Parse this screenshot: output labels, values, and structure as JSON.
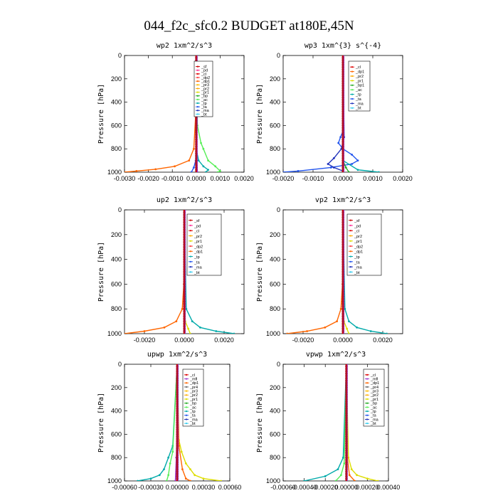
{
  "title": "044_f2c_sfc0.2  BUDGET at180E,45N",
  "colors": {
    "sf": "#cc0000",
    "pd": "#ff3399",
    "cl": "#dd0000",
    "dp2": "#ff4040",
    "dp1": "#ff6600",
    "pr3": "#ffbb00",
    "pr2": "#ffaa00",
    "pr1": "#dddd00",
    "bp": "#22aa22",
    "ac": "#55ee55",
    "tp": "#00aaaa",
    "ta": "#2255ee",
    "ma": "#2233bb",
    "bt": "#33ccee",
    "mfl": "#9933cc",
    "dp4": "#cc2255",
    "axis": "#000000",
    "legend_border": "#000000"
  },
  "chart_data": [
    {
      "type": "line",
      "title": "wp2  1xm^2/s^3",
      "xlabel": "",
      "ylabel": "Pressure [hPa]",
      "xlim": [
        -0.003,
        0.002
      ],
      "ylim": [
        1000,
        0
      ],
      "xticks": [
        -0.003,
        -0.002,
        -0.001,
        0.0,
        0.001,
        0.002
      ],
      "xtick_labels": [
        "-0.0030",
        "-0.0020",
        "-0.0010",
        "0.0000",
        "0.0010",
        "0.0020"
      ],
      "yticks": [
        0,
        200,
        400,
        600,
        800,
        1000
      ],
      "ytick_labels": [
        "0",
        "200",
        "400",
        "600",
        "800",
        "1000"
      ],
      "legend": [
        "_sf",
        "_pd",
        "_cl",
        "_dp2",
        "_dp1",
        "_pr3",
        "_pr2",
        "_pr1",
        "_bp",
        "_ac",
        "_tp",
        "_ta",
        "_ma",
        "_bt"
      ],
      "series": [
        {
          "key": "dp1",
          "pressure": [
            0,
            500,
            800,
            900,
            950,
            975,
            990,
            1000
          ],
          "values": [
            0,
            -2e-05,
            -0.0001,
            -0.0003,
            -0.0009,
            -0.0017,
            -0.0025,
            -0.003
          ]
        },
        {
          "key": "ac",
          "pressure": [
            0,
            600,
            750,
            800,
            900,
            950,
            990,
            1000
          ],
          "values": [
            0,
            5e-05,
            0.0002,
            0.0003,
            0.0005,
            0.0008,
            0.001,
            0.0009
          ]
        },
        {
          "key": "tp",
          "pressure": [
            0,
            800,
            900,
            950,
            980,
            1000
          ],
          "values": [
            0,
            0.0,
            0.0001,
            0.0003,
            0.0005,
            0.0004
          ]
        },
        {
          "key": "ta",
          "pressure": [
            0,
            900,
            960,
            1000
          ],
          "values": [
            0,
            -2e-05,
            -0.0001,
            -0.0002
          ]
        },
        {
          "key": "mfl",
          "pressure": [
            0,
            500,
            900,
            1000
          ],
          "values": [
            0,
            0.0,
            3e-05,
            5e-05
          ]
        }
      ]
    },
    {
      "type": "line",
      "title": "wp3  1xm^{3} s^{-4}",
      "xlabel": "",
      "ylabel": "Pressure [hPa]",
      "xlim": [
        -0.002,
        0.002
      ],
      "ylim": [
        1000,
        0
      ],
      "xticks": [
        -0.002,
        -0.001,
        0.0,
        0.001,
        0.002
      ],
      "xtick_labels": [
        "-0.0020",
        "-0.0010",
        "0.0000",
        "0.0010",
        "0.0020"
      ],
      "yticks": [
        0,
        200,
        400,
        600,
        800,
        1000
      ],
      "ytick_labels": [
        "0",
        "200",
        "400",
        "600",
        "800",
        "1000"
      ],
      "legend": [
        "_cl",
        "_dp1",
        "_pr2",
        "_pr1",
        "_bp1",
        "_ac",
        "_tp",
        "_ta",
        "_ma",
        "_bt"
      ],
      "series": [
        {
          "key": "ta",
          "pressure": [
            0,
            650,
            700,
            750,
            800,
            850,
            900,
            930,
            960,
            990,
            1000
          ],
          "values": [
            0,
            0.0,
            -8e-05,
            -0.00015,
            0.0,
            0.0003,
            0.0005,
            0.0003,
            -0.0004,
            -0.0015,
            -0.002
          ]
        },
        {
          "key": "ma",
          "pressure": [
            0,
            700,
            800,
            880,
            930,
            960,
            990,
            1000
          ],
          "values": [
            0,
            4e-05,
            -5e-05,
            -0.0003,
            -0.0005,
            -0.0003,
            0.0,
            0.0
          ]
        },
        {
          "key": "bp",
          "pressure": [
            0,
            900,
            960,
            1000
          ],
          "values": [
            0,
            0.0,
            0.0001,
            0.0002
          ]
        },
        {
          "key": "cl",
          "pressure": [
            0,
            500,
            1000
          ],
          "values": [
            0,
            0.0,
            0.0
          ]
        },
        {
          "key": "tp",
          "pressure": [
            0,
            900,
            980,
            1000
          ],
          "values": [
            0,
            0.0,
            0.0005,
            0.0012
          ]
        }
      ]
    },
    {
      "type": "line",
      "title": "up2  1xm^2/s^3",
      "xlabel": "",
      "ylabel": "Pressure [hPa]",
      "xlim": [
        -0.003,
        0.003
      ],
      "ylim": [
        1000,
        0
      ],
      "xticks": [
        -0.002,
        0.0,
        0.002
      ],
      "xtick_labels": [
        "-0.0020",
        "0.0000",
        "0.0020"
      ],
      "yticks": [
        0,
        200,
        400,
        600,
        800,
        1000
      ],
      "ytick_labels": [
        "0",
        "200",
        "400",
        "600",
        "800",
        "1000"
      ],
      "legend": [
        "_sf",
        "_pd",
        "_cl",
        "_pr2",
        "_pr1",
        "_dp2",
        "_dp1",
        "_tp",
        "_ta",
        "_ma",
        "_bt"
      ],
      "series": [
        {
          "key": "dp1",
          "pressure": [
            0,
            600,
            800,
            900,
            950,
            980,
            1000
          ],
          "values": [
            0,
            -2e-05,
            -0.0001,
            -0.0004,
            -0.001,
            -0.002,
            -0.003
          ]
        },
        {
          "key": "tp",
          "pressure": [
            0,
            800,
            900,
            950,
            980,
            1000
          ],
          "values": [
            0,
            0.0001,
            0.0004,
            0.0008,
            0.0016,
            0.0025
          ]
        },
        {
          "key": "pr1",
          "pressure": [
            0,
            900,
            960,
            1000
          ],
          "values": [
            0,
            5e-05,
            0.0002,
            0.0003
          ]
        },
        {
          "key": "cl",
          "pressure": [
            0,
            500,
            1000
          ],
          "values": [
            0,
            0.0,
            0.0
          ]
        }
      ]
    },
    {
      "type": "line",
      "title": "vp2  1xm^2/s^3",
      "xlabel": "",
      "ylabel": "Pressure [hPa]",
      "xlim": [
        -0.003,
        0.003
      ],
      "ylim": [
        1000,
        0
      ],
      "xticks": [
        -0.002,
        0.0,
        0.002
      ],
      "xtick_labels": [
        "-0.0020",
        "0.0000",
        "0.0020"
      ],
      "yticks": [
        0,
        200,
        400,
        600,
        800,
        1000
      ],
      "ytick_labels": [
        "0",
        "200",
        "400",
        "600",
        "800",
        "1000"
      ],
      "legend": [
        "_sf",
        "_pd",
        "_cl",
        "_pr2",
        "_pr1",
        "_dp2",
        "_dp1",
        "_tp",
        "_ta",
        "_ma",
        "_bt"
      ],
      "series": [
        {
          "key": "dp1",
          "pressure": [
            0,
            600,
            800,
            900,
            950,
            980,
            1000
          ],
          "values": [
            0,
            -2e-05,
            -0.0001,
            -0.0003,
            -0.0009,
            -0.0018,
            -0.0028
          ]
        },
        {
          "key": "tp",
          "pressure": [
            0,
            800,
            900,
            950,
            980,
            1000
          ],
          "values": [
            0,
            0.0001,
            0.0003,
            0.0007,
            0.0014,
            0.0022
          ]
        },
        {
          "key": "pr1",
          "pressure": [
            0,
            900,
            960,
            1000
          ],
          "values": [
            0,
            5e-05,
            0.0002,
            0.0003
          ]
        },
        {
          "key": "cl",
          "pressure": [
            0,
            500,
            1000
          ],
          "values": [
            0,
            0.0,
            0.0
          ]
        }
      ]
    },
    {
      "type": "line",
      "title": "upwp  1xm^2/s^3",
      "xlabel": "",
      "ylabel": "Pressure [hPa]",
      "xlim": [
        -0.0006,
        0.0006
      ],
      "ylim": [
        1000,
        0
      ],
      "xticks": [
        -0.0006,
        -0.0003,
        0.0,
        0.0003,
        0.0006
      ],
      "xtick_labels": [
        "-0.00060",
        "-0.00030",
        "0.00000",
        "0.00030",
        "0.00060"
      ],
      "yticks": [
        0,
        200,
        400,
        600,
        800,
        1000
      ],
      "ytick_labels": [
        "0",
        "200",
        "400",
        "600",
        "800",
        "1000"
      ],
      "legend": [
        "_cl",
        "_mfl",
        "_dp1",
        "_pr4",
        "_pr3",
        "_pr2",
        "_pr1",
        "_bp",
        "_ac",
        "_tp",
        "_ta",
        "_ma",
        "_bt"
      ],
      "series": [
        {
          "key": "pr1",
          "pressure": [
            0,
            650,
            750,
            850,
            900,
            950,
            980,
            1000
          ],
          "values": [
            0,
            2e-05,
            5e-05,
            0.0001,
            0.00015,
            0.0002,
            0.0003,
            0.0005
          ]
        },
        {
          "key": "tp",
          "pressure": [
            0,
            700,
            800,
            900,
            950,
            980,
            1000
          ],
          "values": [
            0,
            -5e-05,
            -0.0001,
            -0.00015,
            -0.0002,
            -0.0003,
            -0.00045
          ]
        },
        {
          "key": "ac",
          "pressure": [
            0,
            750,
            850,
            950,
            1000
          ],
          "values": [
            0,
            -5e-05,
            -8e-05,
            -0.0001,
            -0.00012
          ]
        },
        {
          "key": "dp1",
          "pressure": [
            0,
            700,
            900,
            980,
            1000
          ],
          "values": [
            0,
            2e-05,
            6e-05,
            0.0001,
            0.00015
          ]
        },
        {
          "key": "mfl",
          "pressure": [
            0,
            500,
            800,
            1000
          ],
          "values": [
            0,
            0.0,
            -1e-05,
            -2e-05
          ]
        }
      ]
    },
    {
      "type": "line",
      "title": "vpwp  1xm^2/s^3",
      "xlabel": "",
      "ylabel": "Pressure [hPa]",
      "xlim": [
        -0.0006,
        0.0004
      ],
      "ylim": [
        1000,
        0
      ],
      "xticks": [
        -0.0006,
        -0.0004,
        -0.0002,
        0.0,
        0.0002,
        0.0004
      ],
      "xtick_labels": [
        "-0.00060",
        "-0.00040",
        "-0.00020",
        "0.00000",
        "0.00020",
        "0.00040"
      ],
      "yticks": [
        0,
        200,
        400,
        600,
        800,
        1000
      ],
      "ytick_labels": [
        "0",
        "200",
        "400",
        "600",
        "800",
        "1000"
      ],
      "legend": [
        "_cl",
        "_mfl",
        "_dp1",
        "_pr4",
        "_pr3",
        "_pr2",
        "_pr1",
        "_bp",
        "_ac",
        "_tp",
        "_ta",
        "_ma",
        "_bt"
      ],
      "series": [
        {
          "key": "pr1",
          "pressure": [
            0,
            800,
            900,
            950,
            980,
            1000
          ],
          "values": [
            0,
            2e-05,
            5e-05,
            0.0001,
            0.0002,
            0.0003
          ]
        },
        {
          "key": "tp",
          "pressure": [
            0,
            800,
            900,
            960,
            1000
          ],
          "values": [
            0,
            -3e-05,
            -8e-05,
            -0.0002,
            -0.0004
          ]
        },
        {
          "key": "ac",
          "pressure": [
            0,
            850,
            950,
            1000
          ],
          "values": [
            0,
            -2e-05,
            -5e-05,
            -0.0001
          ]
        },
        {
          "key": "dp1",
          "pressure": [
            0,
            800,
            950,
            1000
          ],
          "values": [
            0,
            1e-05,
            3e-05,
            8e-05
          ]
        },
        {
          "key": "mfl",
          "pressure": [
            0,
            500,
            1000
          ],
          "values": [
            0,
            0.0,
            0.0
          ]
        }
      ]
    }
  ]
}
